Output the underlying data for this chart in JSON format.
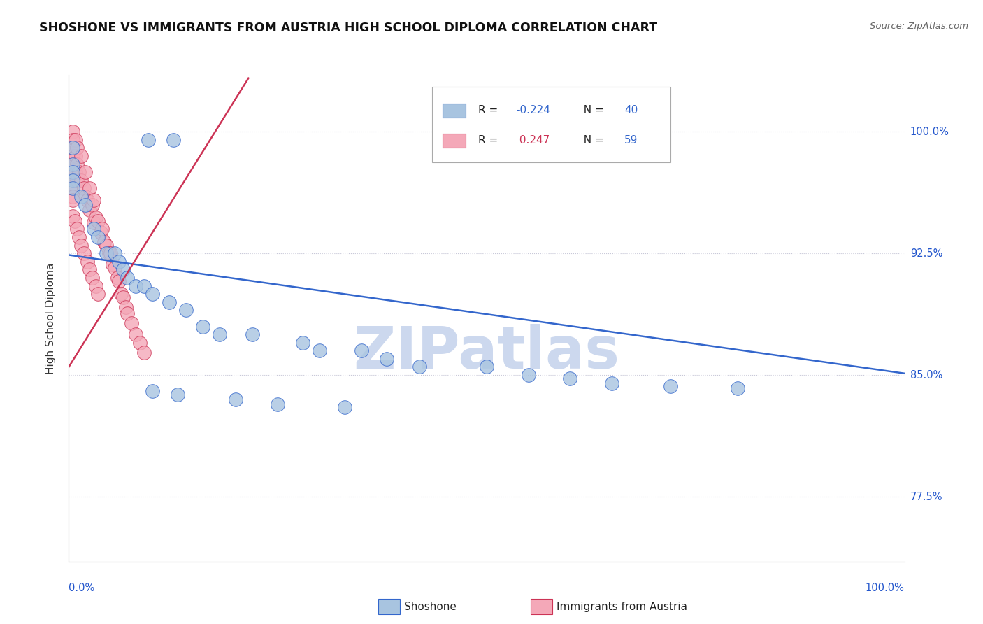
{
  "title": "SHOSHONE VS IMMIGRANTS FROM AUSTRIA HIGH SCHOOL DIPLOMA CORRELATION CHART",
  "source": "Source: ZipAtlas.com",
  "ylabel": "High School Diploma",
  "ytick_labels": [
    "77.5%",
    "85.0%",
    "92.5%",
    "100.0%"
  ],
  "ytick_values": [
    0.775,
    0.85,
    0.925,
    1.0
  ],
  "xlim": [
    0.0,
    1.0
  ],
  "ylim": [
    0.735,
    1.035
  ],
  "blue_color": "#a8c4e0",
  "pink_color": "#f4a8b8",
  "blue_line_color": "#3366cc",
  "pink_line_color": "#cc3355",
  "watermark_text": "ZIPatlas",
  "watermark_color": "#ccd8ee",
  "blue_line_x": [
    0.0,
    1.0
  ],
  "blue_line_y": [
    0.924,
    0.851
  ],
  "pink_line_x": [
    0.0,
    0.215
  ],
  "pink_line_y": [
    0.855,
    1.033
  ],
  "shoshone_x": [
    0.095,
    0.125,
    0.005,
    0.005,
    0.005,
    0.005,
    0.005,
    0.015,
    0.02,
    0.03,
    0.035,
    0.045,
    0.055,
    0.06,
    0.065,
    0.07,
    0.08,
    0.09,
    0.1,
    0.12,
    0.14,
    0.16,
    0.18,
    0.22,
    0.28,
    0.3,
    0.35,
    0.38,
    0.42,
    0.5,
    0.55,
    0.6,
    0.65,
    0.72,
    0.8,
    0.1,
    0.13,
    0.2,
    0.25,
    0.33
  ],
  "shoshone_y": [
    0.995,
    0.995,
    0.99,
    0.98,
    0.975,
    0.97,
    0.965,
    0.96,
    0.955,
    0.94,
    0.935,
    0.925,
    0.925,
    0.92,
    0.915,
    0.91,
    0.905,
    0.905,
    0.9,
    0.895,
    0.89,
    0.88,
    0.875,
    0.875,
    0.87,
    0.865,
    0.865,
    0.86,
    0.855,
    0.855,
    0.85,
    0.848,
    0.845,
    0.843,
    0.842,
    0.84,
    0.838,
    0.835,
    0.832,
    0.83
  ],
  "austria_x": [
    0.005,
    0.005,
    0.005,
    0.005,
    0.005,
    0.005,
    0.005,
    0.005,
    0.005,
    0.008,
    0.008,
    0.008,
    0.01,
    0.01,
    0.01,
    0.012,
    0.015,
    0.015,
    0.018,
    0.02,
    0.02,
    0.022,
    0.025,
    0.025,
    0.028,
    0.03,
    0.03,
    0.032,
    0.035,
    0.038,
    0.04,
    0.042,
    0.045,
    0.048,
    0.05,
    0.052,
    0.055,
    0.058,
    0.06,
    0.062,
    0.065,
    0.068,
    0.07,
    0.075,
    0.08,
    0.085,
    0.09,
    0.005,
    0.005,
    0.007,
    0.01,
    0.012,
    0.015,
    0.018,
    0.022,
    0.025,
    0.028,
    0.032,
    0.035
  ],
  "austria_y": [
    1.0,
    0.995,
    0.99,
    0.985,
    0.98,
    0.975,
    0.97,
    0.965,
    0.96,
    0.995,
    0.985,
    0.975,
    0.99,
    0.98,
    0.97,
    0.975,
    0.985,
    0.97,
    0.965,
    0.975,
    0.96,
    0.958,
    0.965,
    0.952,
    0.955,
    0.958,
    0.944,
    0.947,
    0.945,
    0.938,
    0.94,
    0.932,
    0.93,
    0.925,
    0.925,
    0.918,
    0.916,
    0.91,
    0.908,
    0.9,
    0.898,
    0.892,
    0.888,
    0.882,
    0.875,
    0.87,
    0.864,
    0.958,
    0.948,
    0.945,
    0.94,
    0.935,
    0.93,
    0.925,
    0.92,
    0.915,
    0.91,
    0.905,
    0.9
  ]
}
